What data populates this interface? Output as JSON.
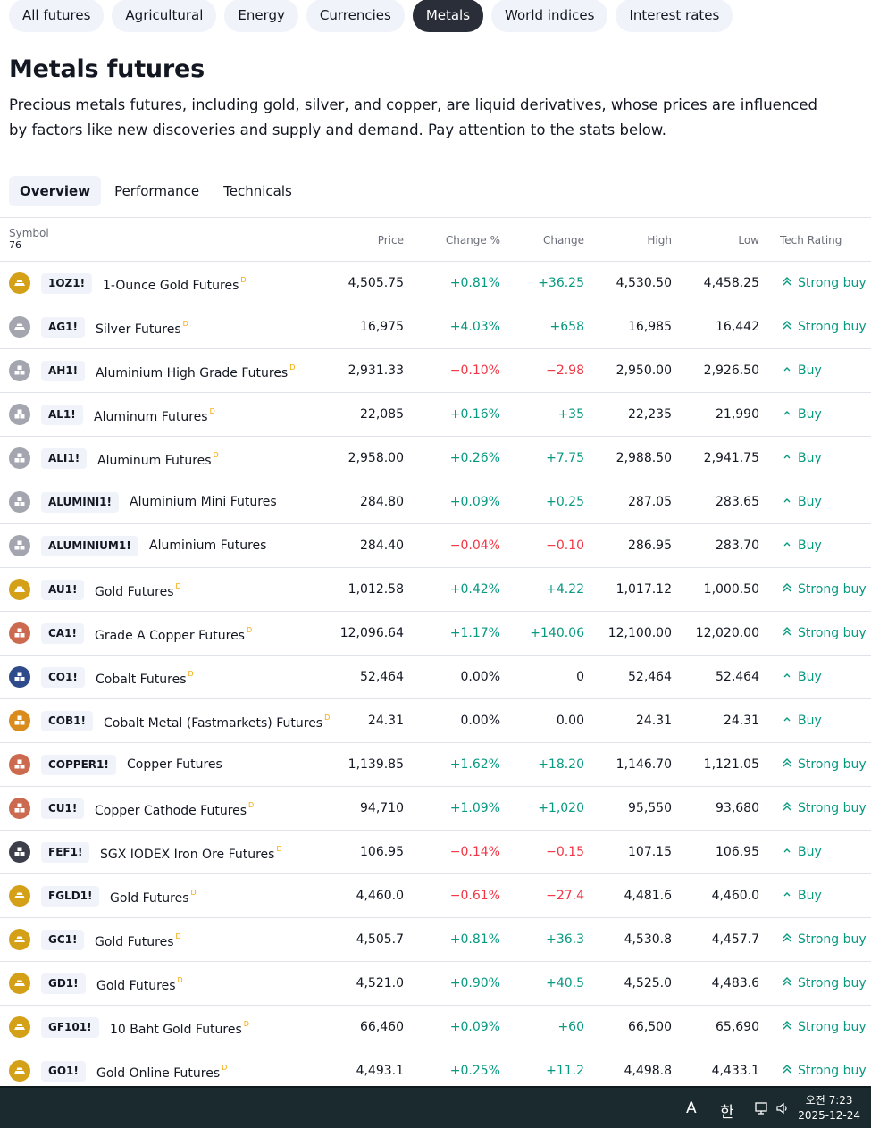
{
  "categories": [
    "All futures",
    "Agricultural",
    "Energy",
    "Currencies",
    "Metals",
    "World indices",
    "Interest rates"
  ],
  "page": {
    "title": "Metals futures",
    "description": "Precious metals futures, including gold, silver, and copper, are liquid derivatives, whose prices are influenced by factors like new discoveries and supply and demand. Pay attention to the stats below."
  },
  "tabs": [
    "Overview",
    "Performance",
    "Technicals"
  ],
  "table": {
    "headers": {
      "symbol": "Symbol",
      "count": "76",
      "price": "Price",
      "change_pct": "Change %",
      "change": "Change",
      "high": "High",
      "low": "Low",
      "rating": "Tech Rating"
    },
    "rows": [
      {
        "ticker": "1OZ1!",
        "name": "1-Ounce Gold Futures",
        "d": "D",
        "price": "4,505.75",
        "change_pct": "+0.81%",
        "change": "+36.25",
        "high": "4,530.50",
        "low": "4,458.25",
        "rating": "Strong buy",
        "dir": "pos",
        "logo": "gold"
      },
      {
        "ticker": "AG1!",
        "name": "Silver Futures",
        "d": "D",
        "price": "16,975",
        "change_pct": "+4.03%",
        "change": "+658",
        "high": "16,985",
        "low": "16,442",
        "rating": "Strong buy",
        "dir": "pos",
        "logo": "silver"
      },
      {
        "ticker": "AH1!",
        "name": "Aluminium High Grade Futures",
        "d": "D",
        "price": "2,931.33",
        "change_pct": "−0.10%",
        "change": "−2.98",
        "high": "2,950.00",
        "low": "2,926.50",
        "rating": "Buy",
        "dir": "neg",
        "logo": "alu"
      },
      {
        "ticker": "AL1!",
        "name": "Aluminum Futures",
        "d": "D",
        "price": "22,085",
        "change_pct": "+0.16%",
        "change": "+35",
        "high": "22,235",
        "low": "21,990",
        "rating": "Buy",
        "dir": "pos",
        "logo": "alu"
      },
      {
        "ticker": "ALI1!",
        "name": "Aluminum Futures",
        "d": "D",
        "price": "2,958.00",
        "change_pct": "+0.26%",
        "change": "+7.75",
        "high": "2,988.50",
        "low": "2,941.75",
        "rating": "Buy",
        "dir": "pos",
        "logo": "alu"
      },
      {
        "ticker": "ALUMINI1!",
        "name": "Aluminium Mini Futures",
        "d": "",
        "price": "284.80",
        "change_pct": "+0.09%",
        "change": "+0.25",
        "high": "287.05",
        "low": "283.65",
        "rating": "Buy",
        "dir": "pos",
        "logo": "alu"
      },
      {
        "ticker": "ALUMINIUM1!",
        "name": "Aluminium Futures",
        "d": "",
        "price": "284.40",
        "change_pct": "−0.04%",
        "change": "−0.10",
        "high": "286.95",
        "low": "283.70",
        "rating": "Buy",
        "dir": "neg",
        "logo": "alu"
      },
      {
        "ticker": "AU1!",
        "name": "Gold Futures",
        "d": "D",
        "price": "1,012.58",
        "change_pct": "+0.42%",
        "change": "+4.22",
        "high": "1,017.12",
        "low": "1,000.50",
        "rating": "Strong buy",
        "dir": "pos",
        "logo": "gold"
      },
      {
        "ticker": "CA1!",
        "name": "Grade A Copper Futures",
        "d": "D",
        "price": "12,096.64",
        "change_pct": "+1.17%",
        "change": "+140.06",
        "high": "12,100.00",
        "low": "12,020.00",
        "rating": "Strong buy",
        "dir": "pos",
        "logo": "copper"
      },
      {
        "ticker": "CO1!",
        "name": "Cobalt Futures",
        "d": "D",
        "price": "52,464",
        "change_pct": "0.00%",
        "change": "0",
        "high": "52,464",
        "low": "52,464",
        "rating": "Buy",
        "dir": "flat",
        "logo": "cobalt"
      },
      {
        "ticker": "COB1!",
        "name": "Cobalt Metal (Fastmarkets) Futures",
        "d": "D",
        "price": "24.31",
        "change_pct": "0.00%",
        "change": "0.00",
        "high": "24.31",
        "low": "24.31",
        "rating": "Buy",
        "dir": "flat",
        "logo": "cobgold"
      },
      {
        "ticker": "COPPER1!",
        "name": "Copper Futures",
        "d": "",
        "price": "1,139.85",
        "change_pct": "+1.62%",
        "change": "+18.20",
        "high": "1,146.70",
        "low": "1,121.05",
        "rating": "Strong buy",
        "dir": "pos",
        "logo": "copper"
      },
      {
        "ticker": "CU1!",
        "name": "Copper Cathode Futures",
        "d": "D",
        "price": "94,710",
        "change_pct": "+1.09%",
        "change": "+1,020",
        "high": "95,550",
        "low": "93,680",
        "rating": "Strong buy",
        "dir": "pos",
        "logo": "copper"
      },
      {
        "ticker": "FEF1!",
        "name": "SGX IODEX Iron Ore Futures",
        "d": "D",
        "price": "106.95",
        "change_pct": "−0.14%",
        "change": "−0.15",
        "high": "107.15",
        "low": "106.95",
        "rating": "Buy",
        "dir": "neg",
        "logo": "iron"
      },
      {
        "ticker": "FGLD1!",
        "name": "Gold Futures",
        "d": "D",
        "price": "4,460.0",
        "change_pct": "−0.61%",
        "change": "−27.4",
        "high": "4,481.6",
        "low": "4,460.0",
        "rating": "Buy",
        "dir": "neg",
        "logo": "gold"
      },
      {
        "ticker": "GC1!",
        "name": "Gold Futures",
        "d": "D",
        "price": "4,505.7",
        "change_pct": "+0.81%",
        "change": "+36.3",
        "high": "4,530.8",
        "low": "4,457.7",
        "rating": "Strong buy",
        "dir": "pos",
        "logo": "gold"
      },
      {
        "ticker": "GD1!",
        "name": "Gold Futures",
        "d": "D",
        "price": "4,521.0",
        "change_pct": "+0.90%",
        "change": "+40.5",
        "high": "4,525.0",
        "low": "4,483.6",
        "rating": "Strong buy",
        "dir": "pos",
        "logo": "gold"
      },
      {
        "ticker": "GF101!",
        "name": "10 Baht Gold Futures",
        "d": "D",
        "price": "66,460",
        "change_pct": "+0.09%",
        "change": "+60",
        "high": "66,500",
        "low": "65,690",
        "rating": "Strong buy",
        "dir": "pos",
        "logo": "gold"
      },
      {
        "ticker": "GO1!",
        "name": "Gold Online Futures",
        "d": "D",
        "price": "4,493.1",
        "change_pct": "+0.25%",
        "change": "+11.2",
        "high": "4,498.8",
        "low": "4,433.1",
        "rating": "Strong buy",
        "dir": "pos",
        "logo": "gold"
      }
    ]
  },
  "logo_colors": {
    "gold": "#d4a017",
    "silver": "#a3a6af",
    "alu": "#a3a6af",
    "copper": "#cc6a4f",
    "cobalt": "#2f4a8a",
    "cobgold": "#d98b1c",
    "iron": "#3c3f4a"
  },
  "colors": {
    "positive": "#089981",
    "negative": "#f23645"
  },
  "taskbar": {
    "ime_letter": "A",
    "ime_korean": "한",
    "time": "오전 7:23",
    "date": "2025-12-24"
  }
}
